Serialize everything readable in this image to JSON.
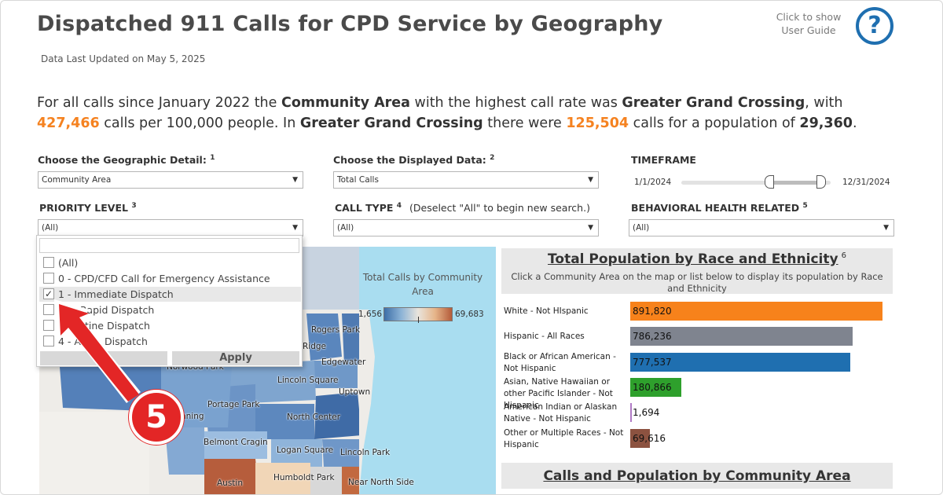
{
  "title": "Dispatched 911 Calls for CPD Service by Geography",
  "updated": "Data Last Updated on May 5, 2025",
  "guide": {
    "text": "Click to show User Guide",
    "icon": "?"
  },
  "summary": {
    "p1": "For all calls since January 2022 the ",
    "geo_level": "Community Area",
    "p2": " with the highest call rate was ",
    "area": "Greater Grand Crossing",
    "p3": ", with ",
    "rate": "427,466",
    "p4": " calls per 100,000 people. In ",
    "area2": "Greater Grand Crossing",
    "p5": " there were ",
    "calls": "125,504",
    "p6": " calls for a population of ",
    "population": "29,360",
    "p7": "."
  },
  "filters": {
    "geo": {
      "label": "Choose the Geographic Detail:",
      "sup": "1",
      "value": "Community Area"
    },
    "data": {
      "label": "Choose the Displayed Data:",
      "sup": "2",
      "value": "Total Calls"
    },
    "timeframe": {
      "label": "TIMEFRAME",
      "start": "1/1/2024",
      "end": "12/31/2024"
    },
    "priority": {
      "label": "PRIORITY LEVEL",
      "sup": "3",
      "value": "(All)"
    },
    "calltype": {
      "label": "CALL TYPE",
      "sup": "4",
      "note": "(Deselect \"All\" to begin new search.)",
      "value": "(All)"
    },
    "behavioral": {
      "label": "BEHAVIORAL HEALTH RELATED",
      "sup": "5",
      "value": "(All)"
    }
  },
  "priority_dropdown": {
    "items": [
      {
        "label": "(All)",
        "checked": false
      },
      {
        "label": "0 - CPD/CFD Call for Emergency Assistance",
        "checked": false
      },
      {
        "label": "1 - Immediate Dispatch",
        "checked": true
      },
      {
        "label": "Rapid Dispatch",
        "checked": false
      },
      {
        "label": "tine Dispatch",
        "checked": false
      },
      {
        "label": "4 - A",
        "checked": false
      },
      {
        "label": "Dispatch",
        "checked": false
      }
    ],
    "cancel": "C",
    "apply": "Apply"
  },
  "map": {
    "legend_title": "Total Calls by Community Area",
    "legend_min": "1,656",
    "legend_max": "69,683",
    "labels": [
      "Rogers Park",
      "Ridge",
      "Edgewater",
      "Norwood Park",
      "Lincoln Square",
      "Uptown",
      "Portage Park",
      "North Center",
      "nning",
      "Belmont Cragin",
      "Logan Square",
      "Lincoln Park",
      "Austin",
      "Humboldt Park",
      "Near North Side"
    ]
  },
  "step_badge": "5",
  "race_panel": {
    "title": "Total Population by Race and Ethnicity",
    "sup": "6",
    "subtitle": "Click a Community Area on the map or list below to display its population by Race and Ethnicity",
    "rows": [
      {
        "label": "White - Not HIspanic",
        "value": 891820,
        "display": "891,820",
        "color": "#f7821b"
      },
      {
        "label": "Hispanic - All Races",
        "value": 786236,
        "display": "786,236",
        "color": "#7f848f"
      },
      {
        "label": "Black or African American - Not Hispanic",
        "value": 777537,
        "display": "777,537",
        "color": "#1f6fb0"
      },
      {
        "label": "Asian, Native Hawaiian or other Pacific Islander - Not Hispanic",
        "value": 180866,
        "display": "180,866",
        "color": "#2ea02c"
      },
      {
        "label": "American Indian or Alaskan Native - Not Hispanic",
        "value": 1694,
        "display": "1,694",
        "color": "#b07ac5"
      },
      {
        "label": "Other or Multiple Races - Not Hispanic",
        "value": 69616,
        "display": "69,616",
        "color": "#8c5240"
      }
    ]
  },
  "table_panel": {
    "title": "Calls and Population by Community Area"
  }
}
